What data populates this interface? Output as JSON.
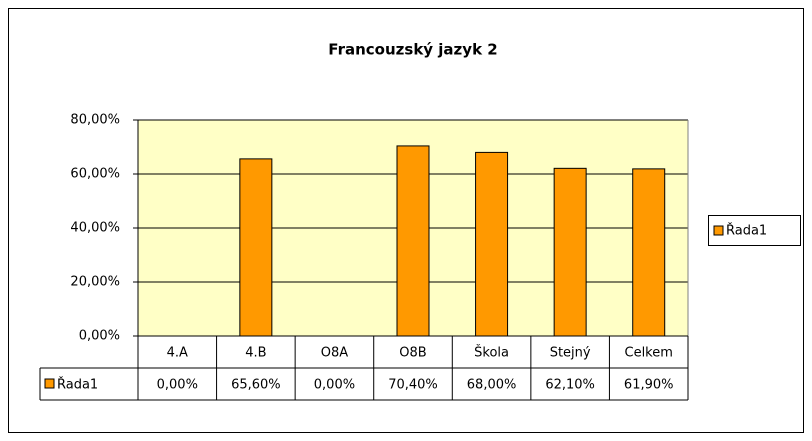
{
  "chart_data": {
    "type": "bar",
    "title": "Francouzský jazyk 2",
    "categories": [
      "4.A",
      "4.B",
      "O8A",
      "O8B",
      "Škola",
      "Stejný",
      "Celkem"
    ],
    "series": [
      {
        "name": "Řada1",
        "color": "#ff9900",
        "values": [
          0,
          65.6,
          0,
          70.4,
          68,
          62.1,
          61.9
        ],
        "value_labels": [
          "0,00%",
          "65,60%",
          "0,00%",
          "70,40%",
          "68,00%",
          "62,10%",
          "61,90%"
        ]
      }
    ],
    "ylim": [
      0,
      80
    ],
    "yticks": [
      {
        "value": 0,
        "label": "0,00%"
      },
      {
        "value": 20,
        "label": "20,00%"
      },
      {
        "value": 40,
        "label": "40,00%"
      },
      {
        "value": 60,
        "label": "60,00%"
      },
      {
        "value": 80,
        "label": "80,00%"
      }
    ],
    "grid": true,
    "legend": "right"
  }
}
